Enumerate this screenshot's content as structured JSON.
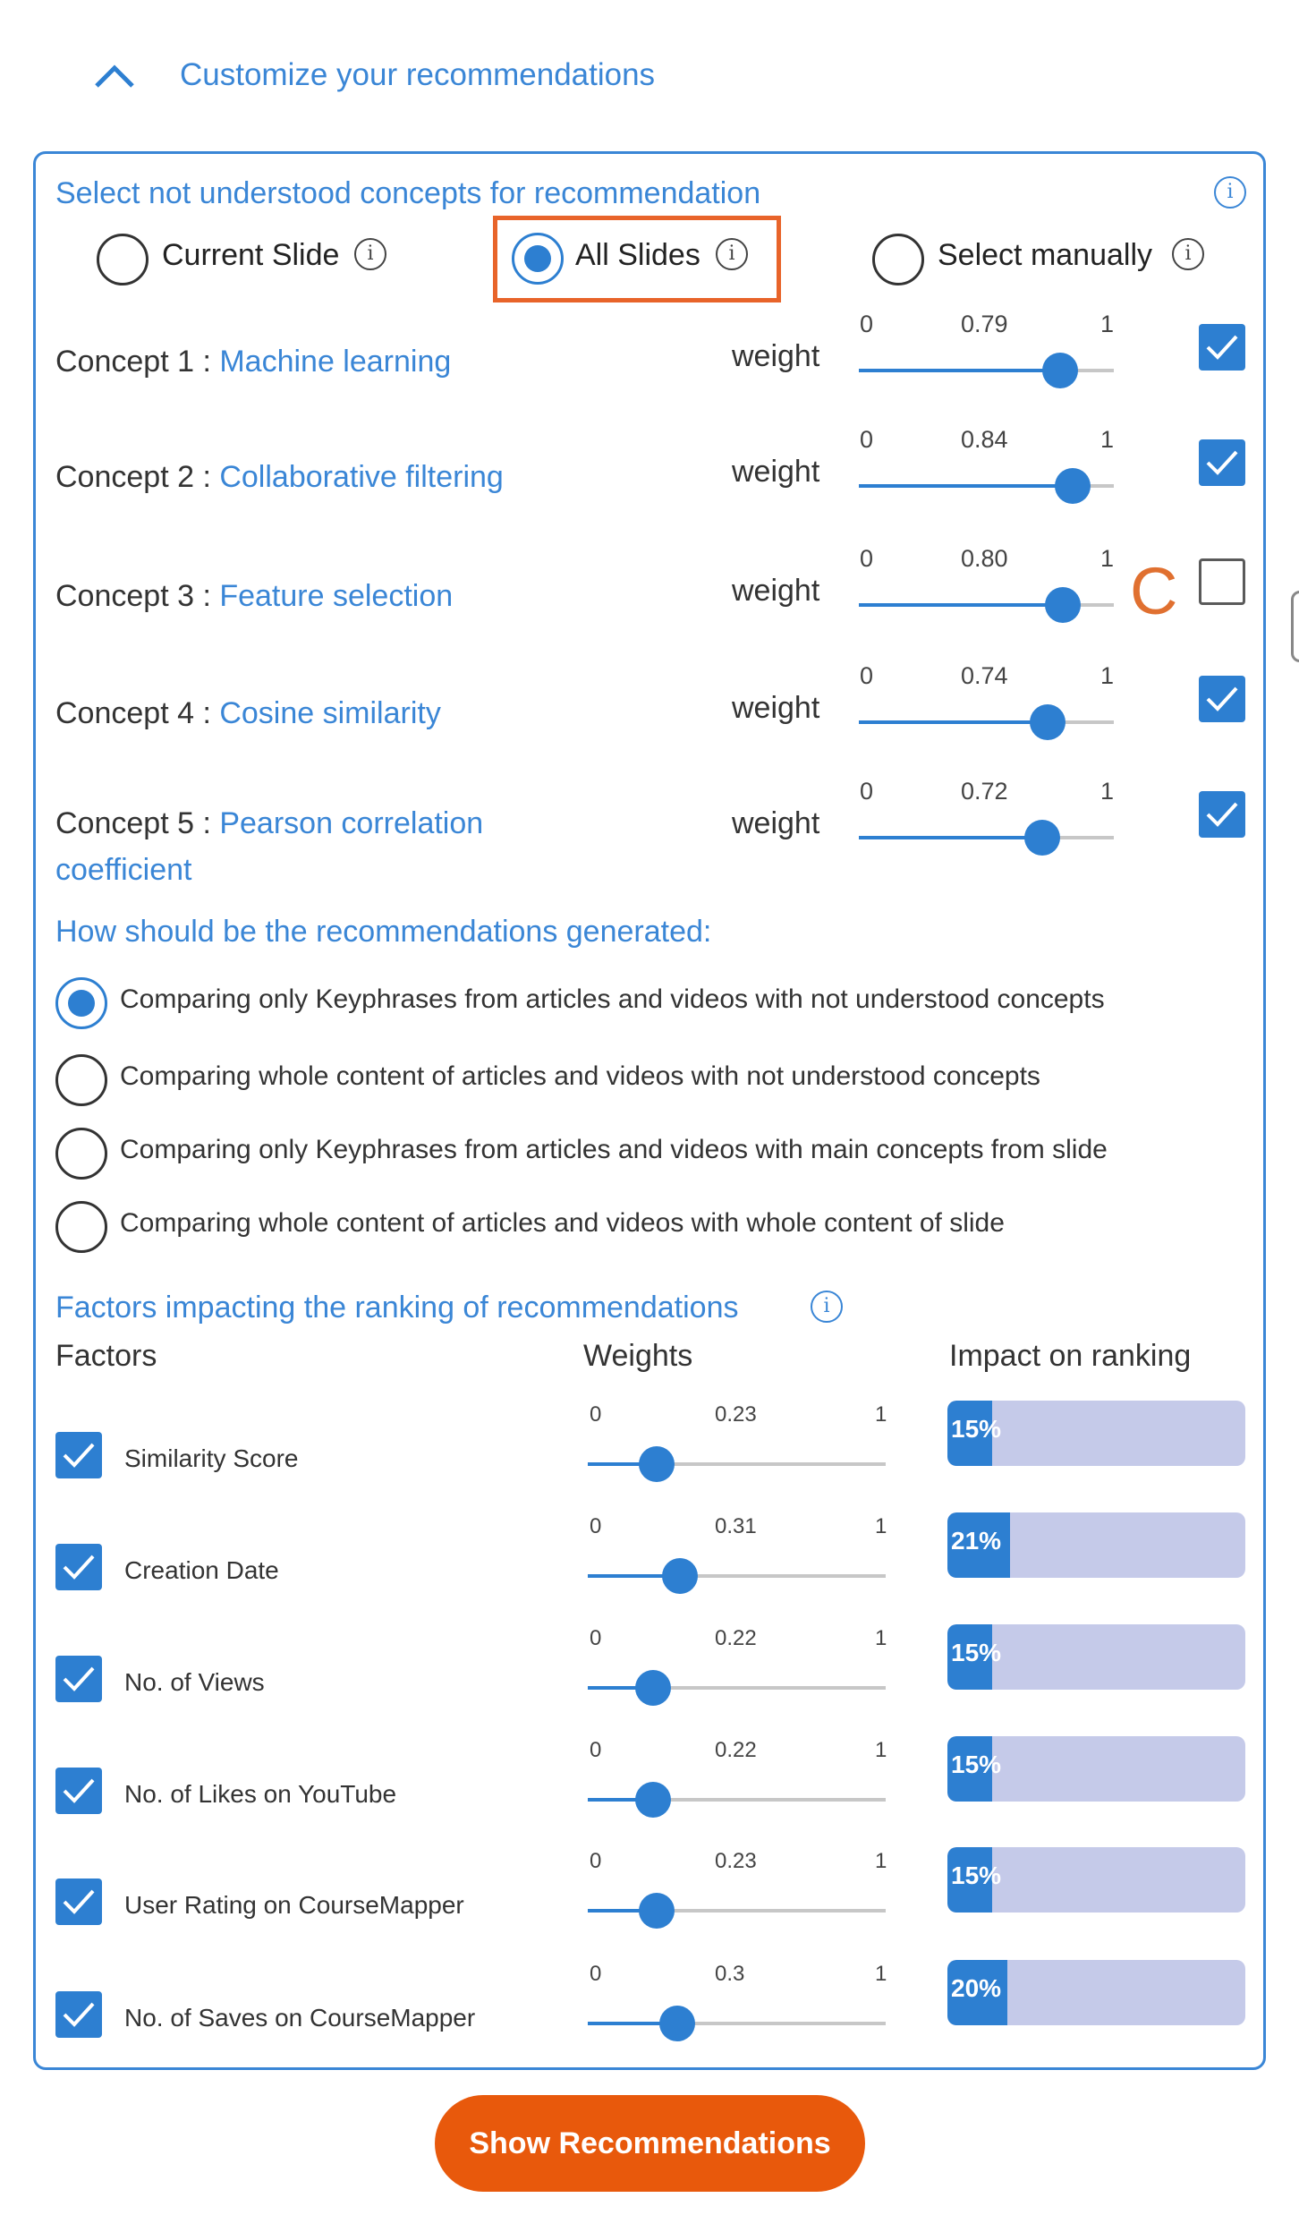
{
  "header": {
    "title": "Customize your recommendations",
    "collapse_icon": "chevron-up-icon"
  },
  "concepts_section": {
    "title": "Select not understood concepts for recommendation",
    "info_icon": "info-icon",
    "scope_options": [
      {
        "label": "Current Slide",
        "selected": false
      },
      {
        "label": "All Slides",
        "selected": true
      },
      {
        "label": "Select manually",
        "selected": false
      }
    ],
    "weight_label": "weight",
    "slider_min": "0",
    "slider_max": "1",
    "concepts": [
      {
        "prefix": "Concept 1 : ",
        "name": "Machine learning",
        "weight": "0.79",
        "value": 0.79,
        "checked": true
      },
      {
        "prefix": "Concept 2 : ",
        "name": "Collaborative filtering",
        "weight": "0.84",
        "value": 0.84,
        "checked": true
      },
      {
        "prefix": "Concept 3 : ",
        "name": "Feature selection",
        "weight": "0.80",
        "value": 0.8,
        "checked": false
      },
      {
        "prefix": "Concept 4 : ",
        "name": "Cosine similarity",
        "weight": "0.74",
        "value": 0.74,
        "checked": true
      },
      {
        "prefix": "Concept 5 : ",
        "name": "Pearson correlation coefficient",
        "weight": "0.72",
        "value": 0.72,
        "checked": true
      }
    ],
    "annotation": "C"
  },
  "method_section": {
    "title": "How should be the recommendations generated:",
    "options": [
      {
        "label": "Comparing only Keyphrases from articles and videos with not understood concepts",
        "selected": true
      },
      {
        "label": "Comparing whole content of articles and videos with not understood concepts",
        "selected": false
      },
      {
        "label": "Comparing only Keyphrases from articles and videos with main concepts from slide",
        "selected": false
      },
      {
        "label": "Comparing whole content of articles and videos with whole content of slide",
        "selected": false
      }
    ]
  },
  "factors_section": {
    "title": "Factors impacting the ranking of recommendations",
    "info_icon": "info-icon",
    "col_factors": "Factors",
    "col_weights": "Weights",
    "col_impact": "Impact on ranking",
    "slider_min": "0",
    "slider_max": "1",
    "factors": [
      {
        "label": "Similarity Score",
        "weight": "0.23",
        "value": 0.23,
        "impact": "15%",
        "impact_value": 0.15,
        "checked": true
      },
      {
        "label": "Creation Date",
        "weight": "0.31",
        "value": 0.31,
        "impact": "21%",
        "impact_value": 0.21,
        "checked": true
      },
      {
        "label": "No. of Views",
        "weight": "0.22",
        "value": 0.22,
        "impact": "15%",
        "impact_value": 0.15,
        "checked": true
      },
      {
        "label": "No. of Likes on YouTube",
        "weight": "0.22",
        "value": 0.22,
        "impact": "15%",
        "impact_value": 0.15,
        "checked": true
      },
      {
        "label": "User Rating on CourseMapper",
        "weight": "0.23",
        "value": 0.23,
        "impact": "15%",
        "impact_value": 0.15,
        "checked": true
      },
      {
        "label": "No. of Saves on CourseMapper",
        "weight": "0.3",
        "value": 0.3,
        "impact": "20%",
        "impact_value": 0.2,
        "checked": true
      }
    ]
  },
  "actions": {
    "show_button": "Show Recommendations"
  },
  "colors": {
    "accent": "#2d7fd1",
    "link": "#3a86d6",
    "button": "#e8590c",
    "highlight": "#e8642a",
    "impact_bg": "#c5cae9"
  }
}
